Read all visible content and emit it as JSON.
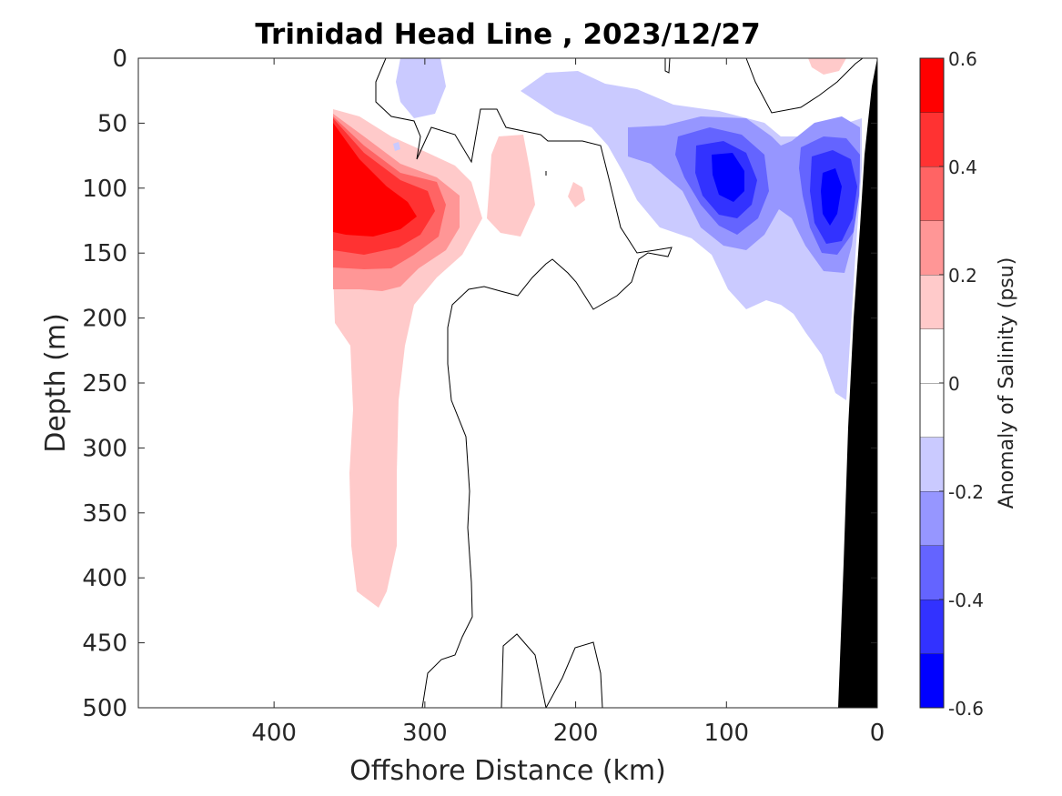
{
  "chart_data": {
    "type": "heatmap",
    "subtype": "filled-contour-section",
    "title": "Trinidad Head Line , 2023/12/27",
    "xlabel": "Offshore Distance (km)",
    "ylabel": "Depth (m)",
    "colorbar_label": "Anomaly of Salinity (psu)",
    "xlim": [
      490,
      0
    ],
    "ylim": [
      0,
      500
    ],
    "y_reversed": true,
    "x_reversed": true,
    "x_ticks": [
      400,
      300,
      200,
      100,
      0
    ],
    "x_tick_labels": [
      "400",
      "300",
      "200",
      "100",
      "0"
    ],
    "y_ticks": [
      0,
      50,
      100,
      150,
      200,
      250,
      300,
      350,
      400,
      450,
      500
    ],
    "y_tick_labels": [
      "0",
      "50",
      "100",
      "150",
      "200",
      "250",
      "300",
      "350",
      "400",
      "450",
      "500"
    ],
    "colorbar": {
      "range": [
        -0.6,
        0.6
      ],
      "levels": [
        -0.6,
        -0.5,
        -0.4,
        -0.3,
        -0.2,
        -0.1,
        0.0,
        0.1,
        0.2,
        0.3,
        0.4,
        0.5,
        0.6
      ],
      "colors": [
        "#0000ff",
        "#3232ff",
        "#6464ff",
        "#9696ff",
        "#cacaff",
        "#ffffff",
        "#ffffff",
        "#ffcaca",
        "#ff9696",
        "#ff6464",
        "#ff3232",
        "#ff0000"
      ],
      "tick_values": [
        0.6,
        0.4,
        0.2,
        0,
        -0.2,
        -0.4,
        -0.6
      ],
      "tick_labels": [
        "0.6",
        "0.4",
        "0.2",
        "0",
        "-0.2",
        "-0.4",
        "-0.6"
      ]
    },
    "bathymetry_color": "#000000",
    "grid": false,
    "regions": [
      {
        "name": "offshore positive core",
        "anomaly_psu": 0.6,
        "x_km": [
          330,
          360
        ],
        "depth_m": [
          80,
          140
        ]
      },
      {
        "name": "offshore positive tongue",
        "anomaly_psu": 0.15,
        "x_km": [
          320,
          360
        ],
        "depth_m": [
          40,
          420
        ]
      },
      {
        "name": "subsurface positive patch",
        "anomaly_psu": 0.15,
        "x_km": [
          235,
          260
        ],
        "depth_m": [
          60,
          150
        ]
      },
      {
        "name": "nearshore negative core 1",
        "anomaly_psu": -0.55,
        "x_km": [
          90,
          110
        ],
        "depth_m": [
          70,
          110
        ]
      },
      {
        "name": "nearshore negative core 2",
        "anomaly_psu": -0.55,
        "x_km": [
          20,
          40
        ],
        "depth_m": [
          80,
          150
        ]
      },
      {
        "name": "nearshore negative envelope",
        "anomaly_psu": -0.15,
        "x_km": [
          10,
          170
        ],
        "depth_m": [
          0,
          260
        ]
      }
    ]
  }
}
